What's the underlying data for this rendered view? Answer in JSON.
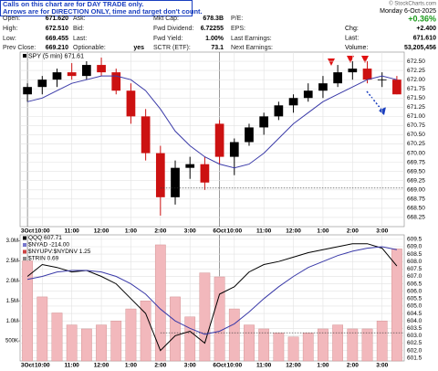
{
  "notice": {
    "lines": [
      "Calls on this chart are for DAY TRADE only.",
      "Arrows are for DIRECTION ONLY, time and target don't count."
    ]
  },
  "header": {
    "copyright": "© StockCharts.com",
    "columns": [
      [
        {
          "label": "Open:",
          "value": "671.620"
        },
        {
          "label": "High:",
          "value": "672.510"
        },
        {
          "label": "Low:",
          "value": "669.455"
        },
        {
          "label": "Prev Close:",
          "value": "669.210"
        }
      ],
      [
        {
          "label": "Ask:"
        },
        {
          "label": "Bid:"
        },
        {
          "label": "Last:"
        },
        {
          "label": "Optionable:",
          "value": "yes"
        }
      ],
      [
        {
          "label": "Mkt Cap:",
          "value": "678.3B"
        },
        {
          "label": "Fwd Dividend:",
          "value": "6.72255"
        },
        {
          "label": "Fwd Yield:",
          "value": "1.00%"
        },
        {
          "label": "SCTR (ETF):",
          "value": "73.1"
        }
      ],
      [
        {
          "label": "P/E:"
        },
        {
          "label": "EPS:"
        },
        {
          "label": "Last Earnings:"
        },
        {
          "label": "Next Earnings:"
        }
      ]
    ],
    "date": "Monday  6-Oct-2025",
    "change_pct": "+0.36%",
    "right": [
      {
        "label": "Chg:",
        "value": "+2.400"
      },
      {
        "label": "Last:",
        "value": "671.610"
      },
      {
        "label": "Volume:",
        "value": "53,205,456"
      }
    ]
  },
  "chart_data": [
    {
      "type": "candlestick",
      "legend": "SPY (5 min) 671.61",
      "legend_color": "#000000",
      "x": [
        0,
        1,
        2,
        3,
        4,
        5,
        6,
        7,
        8,
        9,
        10,
        11,
        12,
        13,
        14,
        15,
        16,
        17,
        18,
        19,
        20,
        21,
        22,
        23,
        24,
        25
      ],
      "open": [
        671.6,
        671.8,
        672.0,
        672.2,
        672.1,
        672.4,
        672.2,
        671.7,
        671.0,
        670.0,
        668.8,
        669.6,
        669.7,
        670.8,
        669.9,
        670.3,
        670.7,
        671.0,
        671.3,
        671.5,
        671.7,
        671.9,
        672.2,
        672.3,
        672.0,
        672.0
      ],
      "high": [
        671.9,
        672.1,
        672.3,
        672.45,
        672.5,
        672.6,
        672.3,
        671.9,
        671.2,
        670.2,
        669.8,
        669.9,
        669.9,
        670.9,
        670.4,
        670.8,
        671.1,
        671.4,
        671.6,
        671.9,
        672.1,
        672.4,
        672.5,
        672.5,
        672.2,
        672.1
      ],
      "low": [
        671.4,
        671.6,
        671.8,
        672.0,
        672.0,
        672.1,
        671.6,
        670.8,
        669.8,
        668.3,
        668.6,
        669.3,
        669.0,
        669.7,
        669.4,
        670.2,
        670.5,
        670.9,
        671.1,
        671.4,
        671.5,
        671.8,
        672.0,
        671.9,
        671.8,
        671.6
      ],
      "close": [
        671.8,
        672.0,
        672.2,
        672.1,
        672.4,
        672.2,
        671.7,
        671.0,
        670.0,
        668.8,
        669.6,
        669.7,
        669.2,
        669.9,
        670.3,
        670.7,
        671.0,
        671.3,
        671.5,
        671.7,
        671.9,
        672.2,
        672.3,
        672.0,
        672.0,
        671.6
      ],
      "up_color": "#000000",
      "down_color": "#cc1111",
      "series": [
        {
          "color": "#3a3aa8",
          "values": [
            671.4,
            671.5,
            671.7,
            671.9,
            672.0,
            672.1,
            672.1,
            672.0,
            671.7,
            671.2,
            670.6,
            670.2,
            669.9,
            669.7,
            669.6,
            669.7,
            670.0,
            670.4,
            670.8,
            671.1,
            671.4,
            671.6,
            671.8,
            672.0,
            672.1,
            672.0
          ]
        }
      ],
      "reference_line": 669.05,
      "xlim": [
        -0.5,
        25.5
      ],
      "ylim": [
        668.0,
        672.75
      ],
      "xticks": [
        {
          "value": 0,
          "label": "3Oct"
        },
        {
          "value": 1,
          "label": "10:00"
        },
        {
          "value": 3,
          "label": "11:00"
        },
        {
          "value": 5,
          "label": "12:00"
        },
        {
          "value": 7,
          "label": "1:00"
        },
        {
          "value": 9,
          "label": "2:00"
        },
        {
          "value": 11,
          "label": "3:00"
        },
        {
          "value": 13,
          "label": "6Oct"
        },
        {
          "value": 14,
          "label": "10:00"
        },
        {
          "value": 16,
          "label": "11:00"
        },
        {
          "value": 18,
          "label": "12:00"
        },
        {
          "value": 20,
          "label": "1:00"
        },
        {
          "value": 22,
          "label": "2:00"
        },
        {
          "value": 24,
          "label": "3:00"
        }
      ],
      "yticks": [
        {
          "value": 672.5,
          "label": "672.50"
        },
        672.25,
        {
          "value": 672.0,
          "label": "672.00"
        },
        671.75,
        {
          "value": 671.5,
          "label": "671.50"
        },
        671.25,
        {
          "value": 671.0,
          "label": "671.00"
        },
        670.75,
        {
          "value": 670.5,
          "label": "670.50"
        },
        670.25,
        {
          "value": 670.0,
          "label": "670.00"
        },
        669.75,
        {
          "value": 669.5,
          "label": "669.50"
        },
        669.25,
        {
          "value": 669.0,
          "label": "669.00"
        },
        668.75,
        {
          "value": 668.5,
          "label": "668.50"
        },
        668.25
      ],
      "grid": true
    },
    {
      "type": "bar",
      "legend": [
        {
          "label": "QQQ 607.71",
          "color": "#000000"
        },
        {
          "label": "$NYAD -214.00",
          "color": "#7777cc"
        },
        {
          "label": "$NYUPV:$NYDNV 1.25",
          "color": "#cc4444"
        },
        {
          "label": "$TRIN 0.69",
          "color": "#888888"
        }
      ],
      "x": [
        0,
        1,
        2,
        3,
        4,
        5,
        6,
        7,
        8,
        9,
        10,
        11,
        12,
        13,
        14,
        15,
        16,
        17,
        18,
        19,
        20,
        21,
        22,
        23,
        24,
        25
      ],
      "values": [
        2500000,
        1600000,
        1200000,
        900000,
        800000,
        900000,
        1000000,
        1300000,
        1500000,
        2900000,
        1600000,
        1100000,
        2200000,
        2100000,
        1300000,
        900000,
        800000,
        700000,
        600000,
        700000,
        800000,
        900000,
        800000,
        800000,
        1000000,
        2800000
      ],
      "color": "#f2b8bc",
      "series": [
        {
          "color": "#000000",
          "axis": "y2",
          "values": [
            607.0,
            607.8,
            607.6,
            607.3,
            607.4,
            607.0,
            606.5,
            605.5,
            604.5,
            602.0,
            603.0,
            603.3,
            602.5,
            605.8,
            606.3,
            607.3,
            607.8,
            608.0,
            608.3,
            608.6,
            608.8,
            609.0,
            609.2,
            609.2,
            608.9,
            607.7
          ]
        },
        {
          "color": "#3a3aa8",
          "axis": "y2",
          "values": [
            606.8,
            607.0,
            607.3,
            607.4,
            607.4,
            607.3,
            607.0,
            606.5,
            605.8,
            604.8,
            604.0,
            603.5,
            603.1,
            603.3,
            603.8,
            604.6,
            605.5,
            606.3,
            607.0,
            607.6,
            608.0,
            608.4,
            608.7,
            608.9,
            609.0,
            608.8
          ]
        }
      ],
      "reference_line": 603.2,
      "xlim": [
        -0.5,
        25.5
      ],
      "ylim": [
        0,
        3150000
      ],
      "y2lim": [
        601.3,
        609.8
      ],
      "xticks": [
        {
          "value": 0,
          "label": "3Oct"
        },
        {
          "value": 1,
          "label": "10:00"
        },
        {
          "value": 3,
          "label": "11:00"
        },
        {
          "value": 5,
          "label": "12:00"
        },
        {
          "value": 7,
          "label": "1:00"
        },
        {
          "value": 9,
          "label": "2:00"
        },
        {
          "value": 11,
          "label": "3:00"
        },
        {
          "value": 13,
          "label": "6Oct"
        },
        {
          "value": 14,
          "label": "10:00"
        },
        {
          "value": 16,
          "label": "11:00"
        },
        {
          "value": 18,
          "label": "12:00"
        },
        {
          "value": 20,
          "label": "1:00"
        },
        {
          "value": 22,
          "label": "2:00"
        },
        {
          "value": 24,
          "label": "3:00"
        }
      ],
      "yticks": [
        {
          "value": 3000000,
          "label": "3.0M"
        },
        {
          "value": 2500000,
          "label": "2.5M"
        },
        {
          "value": 2000000,
          "label": "2.0M"
        },
        {
          "value": 1500000,
          "label": "1.5M"
        },
        {
          "value": 1000000,
          "label": "1.0M"
        },
        {
          "value": 500000,
          "label": "500K"
        }
      ],
      "y2ticks": [
        609.5,
        {
          "value": 609.0,
          "label": "609.0"
        },
        608.5,
        {
          "value": 608.0,
          "label": "608.0"
        },
        607.5,
        {
          "value": 607.0,
          "label": "607.0"
        },
        606.5,
        {
          "value": 606.0,
          "label": "606.0"
        },
        605.5,
        {
          "value": 605.0,
          "label": "605.0"
        },
        604.5,
        {
          "value": 604.0,
          "label": "604.0"
        },
        603.5,
        {
          "value": 603.0,
          "label": "603.0"
        },
        602.5,
        {
          "value": 602.0,
          "label": "602.0"
        },
        601.5
      ],
      "grid": true
    }
  ]
}
